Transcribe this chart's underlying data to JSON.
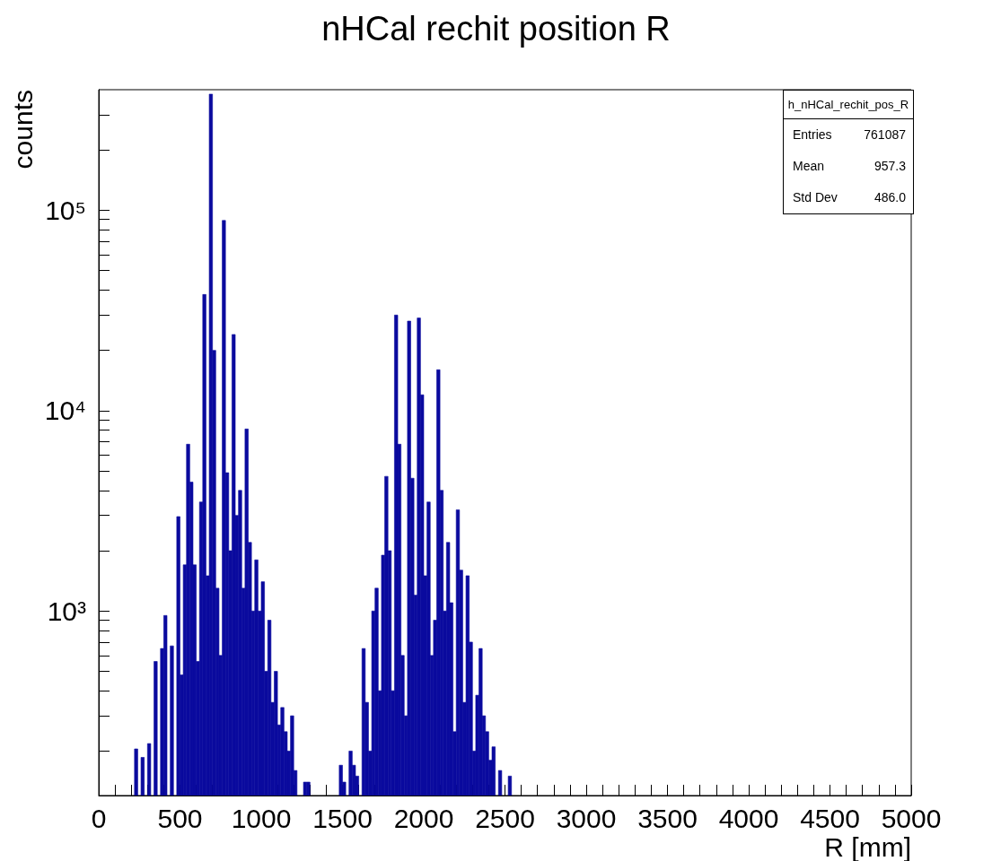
{
  "chart_data": {
    "type": "histogram",
    "title": "nHCal rechit position R",
    "xlabel": "R [mm]",
    "ylabel": "counts",
    "color": "#0a0a9e",
    "bins": [
      200,
      220,
      240,
      260,
      280,
      300,
      320,
      340,
      360,
      380,
      400,
      420,
      440,
      460,
      480,
      500,
      520,
      540,
      560,
      580,
      600,
      620,
      640,
      660,
      680,
      700,
      720,
      740,
      760,
      780,
      800,
      820,
      840,
      860,
      880,
      900,
      920,
      940,
      960,
      980,
      1000,
      1020,
      1040,
      1060,
      1080,
      1100,
      1120,
      1140,
      1160,
      1180,
      1200,
      1220,
      1240,
      1260,
      1280,
      1300,
      1320,
      1340,
      1360,
      1380,
      1400,
      1420,
      1440,
      1460,
      1480,
      1500,
      1520,
      1540,
      1560,
      1580,
      1600,
      1620,
      1640,
      1660,
      1680,
      1700,
      1720,
      1740,
      1760,
      1780,
      1800,
      1820,
      1840,
      1860,
      1880,
      1900,
      1920,
      1940,
      1960,
      1980,
      2000,
      2020,
      2040,
      2060,
      2080,
      2100,
      2120,
      2140,
      2160,
      2180,
      2200,
      2220,
      2240,
      2260,
      2280,
      2300,
      2320,
      2340,
      2360,
      2380,
      2400,
      2420,
      2440,
      2460,
      2480,
      2500,
      2520,
      2540
    ],
    "values": [
      null,
      205,
      null,
      186,
      null,
      218,
      null,
      560,
      null,
      650,
      950,
      null,
      670,
      null,
      2960,
      480,
      1700,
      6800,
      4400,
      1700,
      560,
      3500,
      38000,
      1500,
      380000,
      20000,
      1300,
      600,
      89000,
      4900,
      2000,
      24000,
      3000,
      4000,
      1300,
      8100,
      2200,
      1000,
      1800,
      1000,
      1400,
      500,
      900,
      350,
      500,
      270,
      330,
      250,
      200,
      300,
      160,
      null,
      null,
      140,
      140,
      null,
      null,
      null,
      null,
      null,
      null,
      null,
      null,
      null,
      170,
      140,
      null,
      200,
      170,
      150,
      null,
      650,
      350,
      200,
      1000,
      1300,
      400,
      1900,
      4700,
      2000,
      400,
      30000,
      6800,
      600,
      300,
      28000,
      4600,
      1200,
      29000,
      12000,
      1500,
      3500,
      600,
      900,
      16000,
      4000,
      1000,
      2200,
      1100,
      250,
      3200,
      1600,
      350,
      1500,
      700,
      200,
      380,
      650,
      300,
      250,
      180,
      210,
      null,
      160,
      null,
      null,
      150
    ],
    "xlim": [
      0,
      5000
    ],
    "xticks": [
      0,
      {
        "value": 100,
        "label": null
      },
      {
        "value": 200,
        "label": null
      },
      {
        "value": 300,
        "label": null
      },
      {
        "value": 400,
        "label": null
      },
      500,
      {
        "value": 600,
        "label": null
      },
      {
        "value": 700,
        "label": null
      },
      {
        "value": 800,
        "label": null
      },
      {
        "value": 900,
        "label": null
      },
      1000,
      {
        "value": 1100,
        "label": null
      },
      {
        "value": 1200,
        "label": null
      },
      {
        "value": 1300,
        "label": null
      },
      {
        "value": 1400,
        "label": null
      },
      1500,
      {
        "value": 1600,
        "label": null
      },
      {
        "value": 1700,
        "label": null
      },
      {
        "value": 1800,
        "label": null
      },
      {
        "value": 1900,
        "label": null
      },
      2000,
      {
        "value": 2100,
        "label": null
      },
      {
        "value": 2200,
        "label": null
      },
      {
        "value": 2300,
        "label": null
      },
      {
        "value": 2400,
        "label": null
      },
      2500,
      {
        "value": 2600,
        "label": null
      },
      {
        "value": 2700,
        "label": null
      },
      {
        "value": 2800,
        "label": null
      },
      {
        "value": 2900,
        "label": null
      },
      3000,
      {
        "value": 3100,
        "label": null
      },
      {
        "value": 3200,
        "label": null
      },
      {
        "value": 3300,
        "label": null
      },
      {
        "value": 3400,
        "label": null
      },
      3500,
      {
        "value": 3600,
        "label": null
      },
      {
        "value": 3700,
        "label": null
      },
      {
        "value": 3800,
        "label": null
      },
      {
        "value": 3900,
        "label": null
      },
      4000,
      {
        "value": 4100,
        "label": null
      },
      {
        "value": 4200,
        "label": null
      },
      {
        "value": 4300,
        "label": null
      },
      {
        "value": 4400,
        "label": null
      },
      4500,
      {
        "value": 4600,
        "label": null
      },
      {
        "value": 4700,
        "label": null
      },
      {
        "value": 4800,
        "label": null
      },
      {
        "value": 4900,
        "label": null
      },
      5000
    ],
    "ylim": [
      120,
      400000
    ],
    "log": true,
    "yticks": [
      {
        "value": 200,
        "label": null
      },
      {
        "value": 300,
        "label": null
      },
      {
        "value": 400,
        "label": null
      },
      {
        "value": 500,
        "label": null
      },
      {
        "value": 600,
        "label": null
      },
      {
        "value": 700,
        "label": null
      },
      {
        "value": 800,
        "label": null
      },
      {
        "value": 900,
        "label": null
      },
      {
        "value": 1000,
        "label": "10³"
      },
      {
        "value": 2000,
        "label": null
      },
      {
        "value": 3000,
        "label": null
      },
      {
        "value": 4000,
        "label": null
      },
      {
        "value": 5000,
        "label": null
      },
      {
        "value": 6000,
        "label": null
      },
      {
        "value": 7000,
        "label": null
      },
      {
        "value": 8000,
        "label": null
      },
      {
        "value": 9000,
        "label": null
      },
      {
        "value": 10000,
        "label": "10⁴"
      },
      {
        "value": 20000,
        "label": null
      },
      {
        "value": 30000,
        "label": null
      },
      {
        "value": 40000,
        "label": null
      },
      {
        "value": 50000,
        "label": null
      },
      {
        "value": 60000,
        "label": null
      },
      {
        "value": 70000,
        "label": null
      },
      {
        "value": 80000,
        "label": null
      },
      {
        "value": 90000,
        "label": null
      },
      {
        "value": 100000,
        "label": "10⁵"
      },
      {
        "value": 200000,
        "label": null
      },
      {
        "value": 300000,
        "label": null
      }
    ],
    "grid": false,
    "annotations": [
      "h_nHCal_rechit_pos_R",
      "Entries",
      "761087",
      "Mean",
      "957.3",
      "Std Dev",
      "486.0"
    ]
  }
}
